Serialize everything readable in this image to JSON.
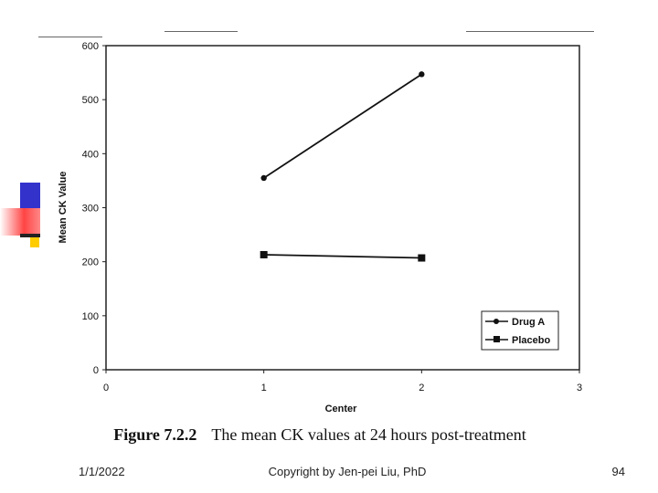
{
  "caption": {
    "figure_label": "Figure 7.2.2",
    "text": "The mean CK values at 24 hours post-treatment"
  },
  "footer": {
    "date": "1/1/2022",
    "copyright": "Copyright by Jen-pei Liu, PhD",
    "page": "94"
  },
  "decor_colors": {
    "blue": "#3333cc",
    "red": "#ff4444",
    "yellow": "#ffcc00"
  },
  "chart_data": {
    "type": "line",
    "xlabel": "Center",
    "ylabel": "Mean CK Value",
    "xlim": [
      0,
      3
    ],
    "ylim": [
      0,
      600
    ],
    "x_ticks": [
      "0",
      "1",
      "2",
      "3"
    ],
    "y_ticks": [
      "0",
      "100",
      "200",
      "300",
      "400",
      "500",
      "600"
    ],
    "grid": false,
    "legend_position": "bottom-right",
    "series": [
      {
        "name": "Drug A",
        "marker": "circle",
        "x": [
          1,
          2
        ],
        "values": [
          355,
          547
        ]
      },
      {
        "name": "Placebo",
        "marker": "square",
        "x": [
          1,
          2
        ],
        "values": [
          213,
          207
        ]
      }
    ]
  }
}
